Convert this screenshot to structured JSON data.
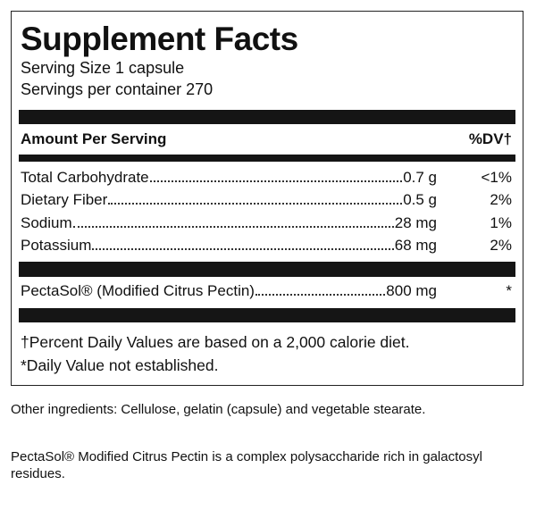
{
  "header": {
    "title": "Supplement Facts",
    "serving_size": "Serving Size 1 capsule",
    "servings_per_container": "Servings per container 270"
  },
  "table": {
    "columns": [
      "Amount Per Serving",
      "%DV†"
    ],
    "rows": [
      [
        "Total Carbohydrate",
        "0.7 g",
        "<1%"
      ],
      [
        "Dietary Fiber",
        "0.5 g",
        "2%"
      ],
      [
        "Sodium",
        "28 mg",
        "1%"
      ],
      [
        "Potassium",
        "68 mg",
        "2%"
      ]
    ],
    "special_rows": [
      [
        "PectaSol® (Modified Citrus Pectin)",
        "800 mg",
        "*"
      ]
    ]
  },
  "footnotes": [
    "†Percent Daily Values are based on a 2,000 calorie diet.",
    "*Daily Value not established."
  ],
  "notes": [
    "Other ingredients: Cellulose, gelatin (capsule) and vegetable stearate.",
    "PectaSol® Modified Citrus Pectin is a complex polysaccharide rich in galactosyl residues."
  ]
}
